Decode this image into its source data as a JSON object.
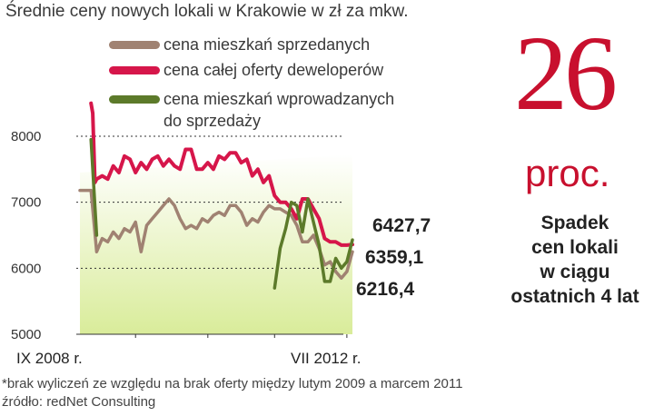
{
  "title": "Średnie ceny nowych lokali w Krakowie w zł za mkw.",
  "legend": [
    {
      "label": "cena mieszkań sprzedanych",
      "color": "#a08272"
    },
    {
      "label": "cena całej oferty deweloperów",
      "color": "#d6164a"
    },
    {
      "label": "cena mieszkań wprowadzanych",
      "label2": "do sprzedaży",
      "color": "#5c7a2a"
    }
  ],
  "highlight": {
    "number": "26",
    "unit": "proc.",
    "headline": [
      "Spadek",
      "cen lokali",
      "w ciągu",
      "ostatnich 4 lat"
    ]
  },
  "footnote": "*brak wyliczeń ze względu na brak oferty między lutym 2009 a marcem 2011",
  "source": "źródło: redNet Consulting",
  "chart_data": {
    "type": "line",
    "x_labels": [
      "IX 2008 r.",
      "VII 2012 r."
    ],
    "ylim": [
      5000,
      8000
    ],
    "yticks": [
      "8000",
      "7000",
      "6000",
      "5000"
    ],
    "grid": true,
    "end_labels": [
      "6427,7",
      "6359,1",
      "6216,4"
    ],
    "series": [
      {
        "name": "cena mieszkań sprzedanych",
        "color": "#a08272",
        "points": [
          [
            0,
            7180
          ],
          [
            2,
            7180
          ],
          [
            3,
            6250
          ],
          [
            4,
            6450
          ],
          [
            5,
            6400
          ],
          [
            6,
            6550
          ],
          [
            7,
            6450
          ],
          [
            8,
            6600
          ],
          [
            9,
            6550
          ],
          [
            10,
            6700
          ],
          [
            11,
            6250
          ],
          [
            12,
            6650
          ],
          [
            13,
            6750
          ],
          [
            14,
            6850
          ],
          [
            15,
            6950
          ],
          [
            16,
            7050
          ],
          [
            17,
            6950
          ],
          [
            18,
            6750
          ],
          [
            19,
            6600
          ],
          [
            20,
            6650
          ],
          [
            21,
            6600
          ],
          [
            22,
            6750
          ],
          [
            23,
            6700
          ],
          [
            24,
            6800
          ],
          [
            25,
            6850
          ],
          [
            26,
            6800
          ],
          [
            27,
            6950
          ],
          [
            28,
            6950
          ],
          [
            29,
            6850
          ],
          [
            30,
            6650
          ],
          [
            31,
            6750
          ],
          [
            32,
            6700
          ],
          [
            33,
            6850
          ],
          [
            34,
            6950
          ],
          [
            35,
            6900
          ],
          [
            36,
            6900
          ],
          [
            37,
            6850
          ],
          [
            38,
            6800
          ],
          [
            39,
            6650
          ],
          [
            40,
            6400
          ],
          [
            41,
            6400
          ],
          [
            42,
            6500
          ],
          [
            43,
            6300
          ],
          [
            44,
            6050
          ],
          [
            45,
            6100
          ],
          [
            46,
            5950
          ],
          [
            47,
            5850
          ],
          [
            48,
            5950
          ],
          [
            49,
            6250
          ]
        ]
      },
      {
        "name": "cena całej oferty deweloperów",
        "color": "#d6164a",
        "points": [
          [
            2,
            8500
          ],
          [
            2.3,
            8350
          ],
          [
            2.7,
            7300
          ],
          [
            3,
            7350
          ],
          [
            4,
            7400
          ],
          [
            5,
            7350
          ],
          [
            6,
            7550
          ],
          [
            7,
            7450
          ],
          [
            8,
            7700
          ],
          [
            9,
            7650
          ],
          [
            10,
            7450
          ],
          [
            11,
            7600
          ],
          [
            12,
            7500
          ],
          [
            13,
            7650
          ],
          [
            14,
            7700
          ],
          [
            15,
            7550
          ],
          [
            16,
            7650
          ],
          [
            17,
            7550
          ],
          [
            18,
            7500
          ],
          [
            19,
            7800
          ],
          [
            20,
            7800
          ],
          [
            21,
            7500
          ],
          [
            22,
            7500
          ],
          [
            23,
            7600
          ],
          [
            24,
            7500
          ],
          [
            25,
            7700
          ],
          [
            26,
            7650
          ],
          [
            27,
            7750
          ],
          [
            28,
            7750
          ],
          [
            29,
            7600
          ],
          [
            30,
            7650
          ],
          [
            31,
            7400
          ],
          [
            32,
            7500
          ],
          [
            33,
            7300
          ],
          [
            34,
            7400
          ],
          [
            35,
            7100
          ],
          [
            36,
            7000
          ],
          [
            37,
            7000
          ],
          [
            38,
            6900
          ],
          [
            39,
            6750
          ],
          [
            40,
            7050
          ],
          [
            41,
            7050
          ],
          [
            42,
            6900
          ],
          [
            43,
            6750
          ],
          [
            44,
            6450
          ],
          [
            45,
            6400
          ],
          [
            46,
            6400
          ],
          [
            47,
            6350
          ],
          [
            48,
            6350
          ],
          [
            49,
            6360
          ]
        ]
      },
      {
        "name": "cena mieszkań wprowadzanych do sprzedaży",
        "color": "#5c7a2a",
        "segments": [
          [
            [
              2,
              7950
            ],
            [
              3,
              6500
            ]
          ],
          [
            [
              35,
              5700
            ],
            [
              36,
              6300
            ],
            [
              37,
              6600
            ],
            [
              38,
              7000
            ],
            [
              39,
              6950
            ],
            [
              40,
              6550
            ],
            [
              41,
              7050
            ],
            [
              42,
              6700
            ],
            [
              43,
              6350
            ],
            [
              44,
              5800
            ],
            [
              45,
              5800
            ],
            [
              46,
              6150
            ],
            [
              47,
              6000
            ],
            [
              48,
              6100
            ],
            [
              49,
              6430
            ]
          ]
        ]
      }
    ]
  }
}
